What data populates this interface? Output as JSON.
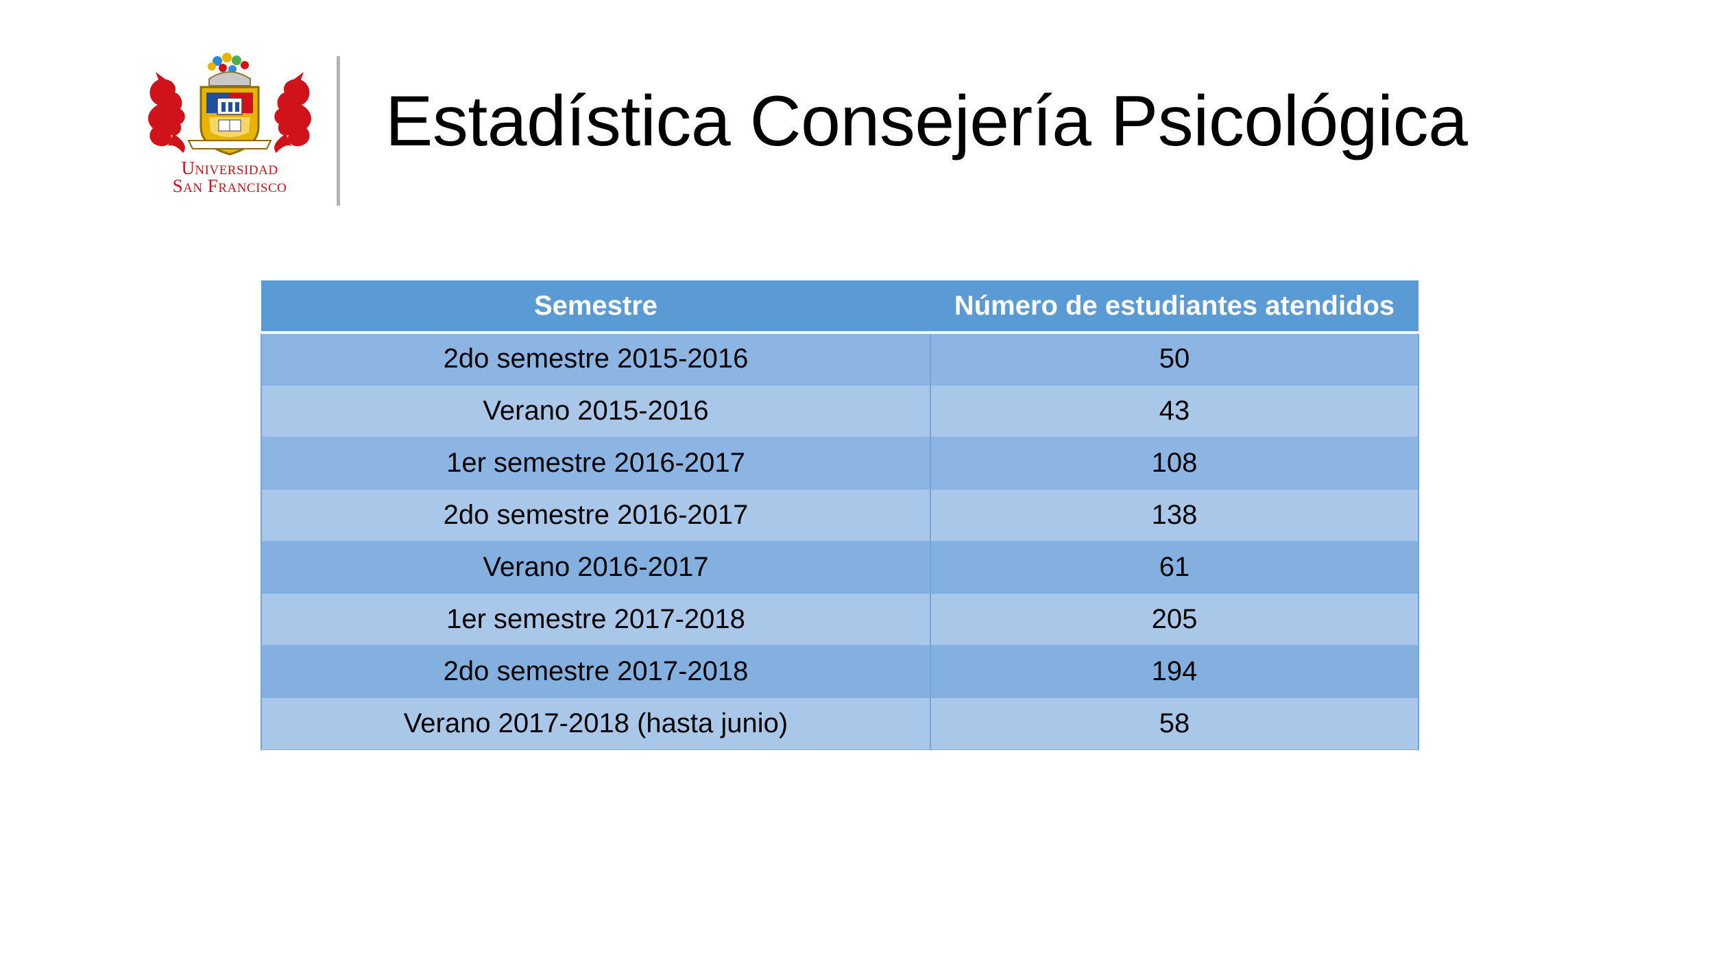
{
  "slide": {
    "title": "Estadística Consejería Psicológica"
  },
  "logo": {
    "line1": "Universidad",
    "line2": "San Francisco",
    "icon": "university-crest-icon",
    "colors": {
      "red": "#d0121b",
      "gold": "#e8b400",
      "blue": "#1f4fa0"
    }
  },
  "table": {
    "headers": [
      "Semestre",
      "Número de estudiantes atendidos"
    ],
    "rows": [
      {
        "semestre": "2do semestre 2015-2016",
        "numero": "50"
      },
      {
        "semestre": "Verano 2015-2016",
        "numero": "43"
      },
      {
        "semestre": "1er semestre 2016-2017",
        "numero": "108"
      },
      {
        "semestre": "2do semestre 2016-2017",
        "numero": "138"
      },
      {
        "semestre": "Verano 2016-2017",
        "numero": "61"
      },
      {
        "semestre": "1er semestre 2017-2018",
        "numero": "205"
      },
      {
        "semestre": "2do semestre 2017-2018",
        "numero": "194"
      },
      {
        "semestre": "Verano 2017-2018 (hasta junio)",
        "numero": "58"
      }
    ],
    "colors": {
      "header": "#5b9bd5",
      "row_dark": "#8db5e3",
      "row_light": "#a9c7e9"
    }
  }
}
